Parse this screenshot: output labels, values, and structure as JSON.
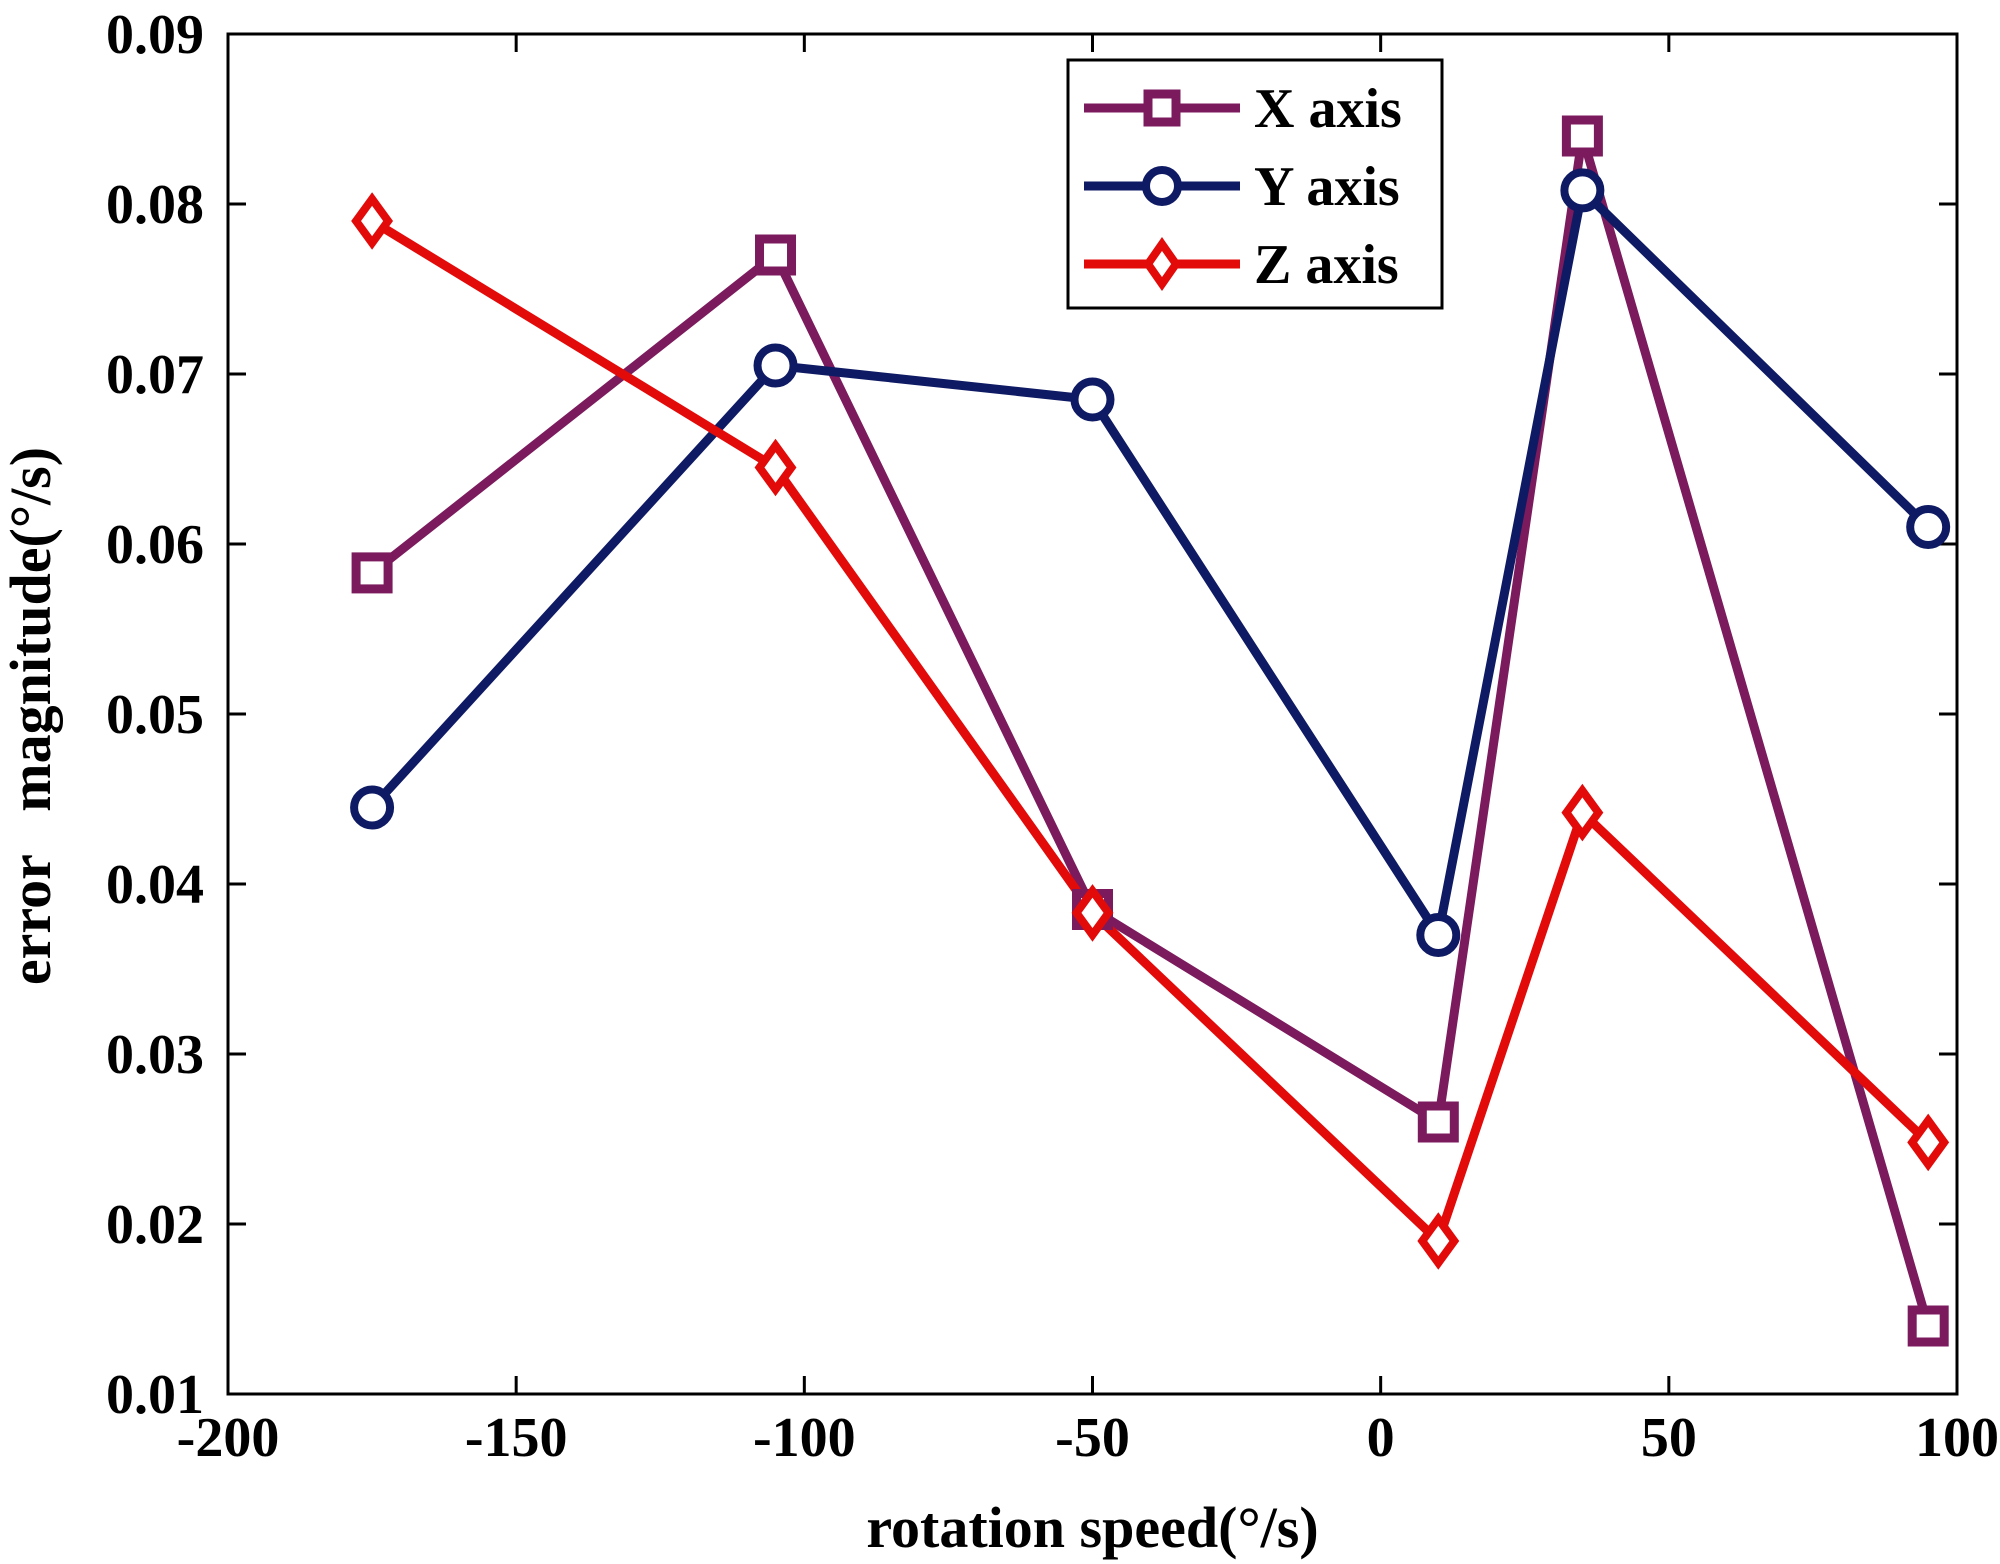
{
  "chart_data": {
    "type": "line",
    "title": "",
    "xlabel": "rotation speed(°/s)",
    "ylabel": "error   magnitude(°/s)",
    "xlim": [
      -200,
      100
    ],
    "ylim": [
      0.01,
      0.09
    ],
    "xticks": [
      -200,
      -150,
      -100,
      -50,
      0,
      50,
      100
    ],
    "xtick_labels": [
      "-200",
      "-150",
      "-100",
      "-50",
      "0",
      "50",
      "100"
    ],
    "yticks": [
      0.01,
      0.02,
      0.03,
      0.04,
      0.05,
      0.06,
      0.07,
      0.08,
      0.09
    ],
    "ytick_labels": [
      "0.01",
      "0.02",
      "0.03",
      "0.04",
      "0.05",
      "0.06",
      "0.07",
      "0.08",
      "0.09"
    ],
    "grid": false,
    "legend_position": "top-right",
    "x": [
      -175,
      -105,
      -50,
      10,
      35,
      95
    ],
    "series": [
      {
        "name": "X axis",
        "marker": "square",
        "color": "#7b1a5c",
        "values": [
          0.0583,
          0.077,
          0.0385,
          0.026,
          0.084,
          0.014
        ]
      },
      {
        "name": "Y axis",
        "marker": "circle",
        "color": "#0e1a63",
        "values": [
          0.0445,
          0.0705,
          0.0685,
          0.037,
          0.0808,
          0.061
        ]
      },
      {
        "name": "Z axis",
        "marker": "diamond",
        "color": "#e30a0a",
        "values": [
          0.079,
          0.0645,
          0.0383,
          0.019,
          0.0442,
          0.0248
        ]
      }
    ]
  }
}
